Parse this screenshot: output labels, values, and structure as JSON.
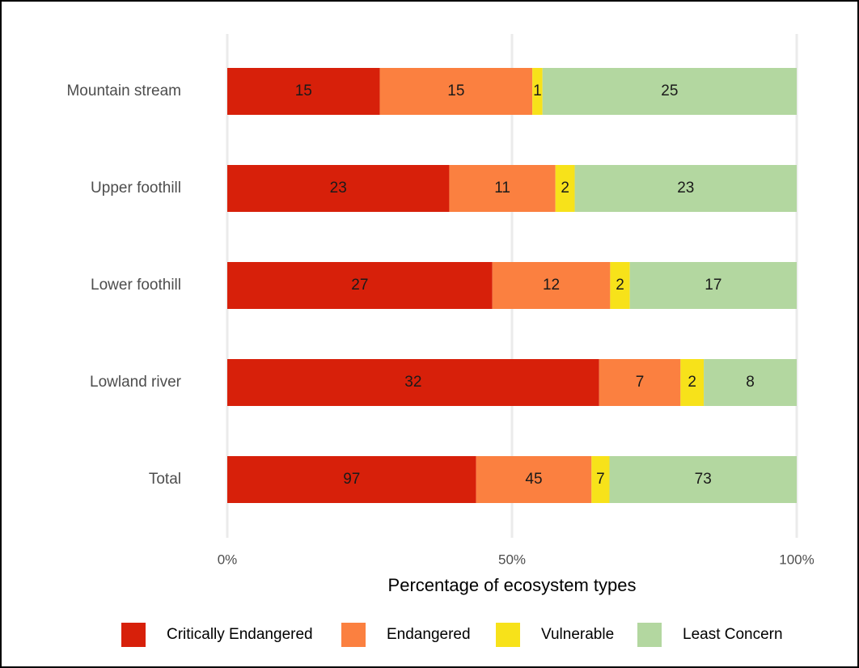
{
  "chart_data": {
    "type": "bar",
    "orientation": "horizontal",
    "stacked": "percent",
    "x_label": "Percentage of ecosystem types",
    "categories": [
      "Mountain stream",
      "Upper foothill",
      "Lower foothill",
      "Lowland river",
      "Total"
    ],
    "series": [
      {
        "name": "Critically Endangered",
        "color": "#d7200a",
        "values": [
          15,
          23,
          27,
          32,
          97
        ]
      },
      {
        "name": "Endangered",
        "color": "#fb8040",
        "values": [
          15,
          11,
          12,
          7,
          45
        ]
      },
      {
        "name": "Vulnerable",
        "color": "#f7e21a",
        "values": [
          1,
          2,
          2,
          2,
          7
        ]
      },
      {
        "name": "Least Concern",
        "color": "#b3d7a0",
        "values": [
          25,
          23,
          17,
          8,
          73
        ]
      }
    ],
    "xlim": [
      0,
      100
    ],
    "xticks": [
      {
        "value": 0,
        "label": "0%"
      },
      {
        "value": 50,
        "label": "50%"
      },
      {
        "value": 100,
        "label": "100%"
      }
    ],
    "grid": true,
    "legend": "bottom"
  }
}
